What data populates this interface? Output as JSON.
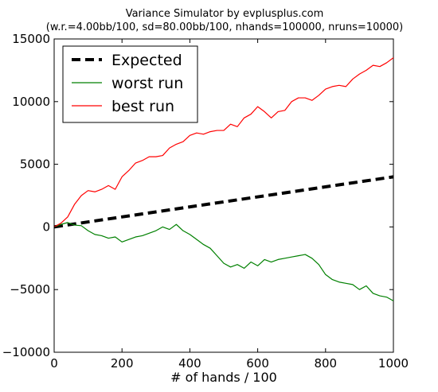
{
  "chart_data": {
    "type": "line",
    "title": "Variance Simulator by evplusplus.com",
    "subtitle": "(w.r.=4.00bb/100, sd=80.00bb/100, nhands=100000, nruns=10000)",
    "xlabel": "# of hands / 100",
    "ylabel": "",
    "xlim": [
      0,
      1000
    ],
    "ylim": [
      -10000,
      15000
    ],
    "x_ticks": [
      0,
      200,
      400,
      600,
      800,
      1000
    ],
    "x_tick_labels": [
      "0",
      "200",
      "400",
      "600",
      "800",
      "1000"
    ],
    "y_ticks": [
      -10000,
      -5000,
      0,
      5000,
      10000,
      15000
    ],
    "y_tick_labels": [
      "−10000",
      "−5000",
      "0",
      "5000",
      "10000",
      "15000"
    ],
    "grid": false,
    "legend_position": "top-left",
    "series": [
      {
        "name": "Expected",
        "color": "#000000",
        "style": "dashed",
        "x": [
          0,
          1000
        ],
        "y": [
          0,
          4000
        ]
      },
      {
        "name": "worst run",
        "color": "#008000",
        "style": "solid",
        "x": [
          0,
          20,
          40,
          60,
          80,
          100,
          120,
          140,
          160,
          180,
          200,
          220,
          240,
          260,
          280,
          300,
          320,
          340,
          360,
          380,
          400,
          420,
          440,
          460,
          480,
          500,
          520,
          540,
          560,
          580,
          600,
          620,
          640,
          660,
          680,
          700,
          720,
          740,
          760,
          780,
          800,
          820,
          840,
          860,
          880,
          900,
          920,
          940,
          960,
          980,
          1000
        ],
        "y": [
          0,
          200,
          350,
          150,
          100,
          -300,
          -600,
          -700,
          -900,
          -800,
          -1200,
          -1000,
          -800,
          -700,
          -500,
          -300,
          0,
          -200,
          200,
          -300,
          -600,
          -1000,
          -1400,
          -1700,
          -2300,
          -2900,
          -3200,
          -3000,
          -3300,
          -2800,
          -3100,
          -2600,
          -2800,
          -2600,
          -2500,
          -2400,
          -2300,
          -2200,
          -2500,
          -3000,
          -3800,
          -4200,
          -4400,
          -4500,
          -4600,
          -5000,
          -4700,
          -5300,
          -5500,
          -5600,
          -5900
        ]
      },
      {
        "name": "best run",
        "color": "#ff0000",
        "style": "solid",
        "x": [
          0,
          20,
          40,
          60,
          80,
          100,
          120,
          140,
          160,
          180,
          200,
          220,
          240,
          260,
          280,
          300,
          320,
          340,
          360,
          380,
          400,
          420,
          440,
          460,
          480,
          500,
          520,
          540,
          560,
          580,
          600,
          620,
          640,
          660,
          680,
          700,
          720,
          740,
          760,
          780,
          800,
          820,
          840,
          860,
          880,
          900,
          920,
          940,
          960,
          980,
          1000
        ],
        "y": [
          0,
          300,
          800,
          1800,
          2500,
          2900,
          2800,
          3000,
          3300,
          3000,
          4000,
          4500,
          5100,
          5300,
          5600,
          5600,
          5700,
          6300,
          6600,
          6800,
          7300,
          7500,
          7400,
          7600,
          7700,
          7700,
          8200,
          8000,
          8700,
          9000,
          9600,
          9200,
          8700,
          9200,
          9300,
          10000,
          10300,
          10300,
          10100,
          10500,
          11000,
          11200,
          11300,
          11200,
          11800,
          12200,
          12500,
          12900,
          12800,
          13100,
          13500
        ]
      }
    ]
  }
}
